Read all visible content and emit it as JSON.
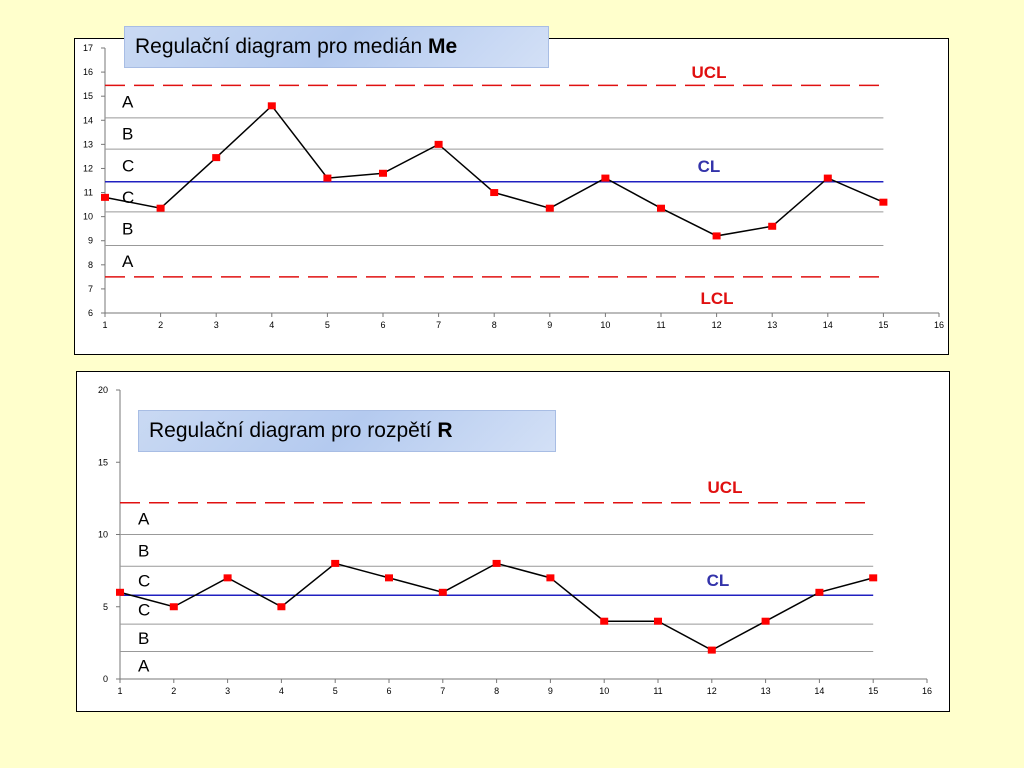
{
  "charts": {
    "me": {
      "title_text": "Regulační diagram pro medián ",
      "title_bold": "Me",
      "labels": {
        "ucl": "UCL",
        "cl": "CL",
        "lcl": "LCL"
      },
      "zones": [
        "A",
        "B",
        "C",
        "C",
        "B",
        "A"
      ],
      "x_ticks": [
        "1",
        "2",
        "3",
        "4",
        "5",
        "6",
        "7",
        "8",
        "9",
        "10",
        "11",
        "12",
        "13",
        "14",
        "15",
        "16"
      ],
      "y_ticks": [
        "6",
        "7",
        "8",
        "9",
        "10",
        "11",
        "12",
        "13",
        "14",
        "15",
        "16",
        "17"
      ]
    },
    "r": {
      "title_text": "Regulační diagram pro rozpětí  ",
      "title_bold": "R",
      "labels": {
        "ucl": "UCL",
        "cl": "CL"
      },
      "zones": [
        "A",
        "B",
        "C",
        "C",
        "B",
        "A"
      ],
      "x_ticks": [
        "1",
        "2",
        "3",
        "4",
        "5",
        "6",
        "7",
        "8",
        "9",
        "10",
        "11",
        "12",
        "13",
        "14",
        "15",
        "16"
      ],
      "y_ticks": [
        "0",
        "5",
        "10",
        "15",
        "20"
      ]
    }
  },
  "colors": {
    "series": "#000000",
    "marker": "#ff0000",
    "limit": "#e01010",
    "center": "#2020c0",
    "zone_line": "#999999"
  },
  "chart_data": [
    {
      "type": "line",
      "title": "Regulační diagram pro medián Me",
      "x": [
        1,
        2,
        3,
        4,
        5,
        6,
        7,
        8,
        9,
        10,
        11,
        12,
        13,
        14,
        15
      ],
      "series": [
        {
          "values": [
            10.8,
            10.35,
            12.45,
            14.6,
            11.6,
            11.8,
            13.0,
            11.0,
            10.35,
            11.6,
            10.35,
            9.2,
            9.6,
            11.6,
            10.6
          ]
        }
      ],
      "ucl": 15.45,
      "cl": 11.45,
      "lcl": 7.5,
      "zone_boundaries": [
        14.1,
        12.8,
        10.2,
        8.8
      ],
      "xlim": [
        1,
        16
      ],
      "ylim": [
        6,
        17
      ],
      "grid": false,
      "legend": "none"
    },
    {
      "type": "line",
      "title": "Regulační diagram pro rozpětí R",
      "x": [
        1,
        2,
        3,
        4,
        5,
        6,
        7,
        8,
        9,
        10,
        11,
        12,
        13,
        14,
        15
      ],
      "series": [
        {
          "values": [
            6,
            5,
            7,
            5,
            8,
            7,
            6,
            8,
            7,
            4,
            4,
            2,
            4,
            6,
            7
          ]
        }
      ],
      "ucl": 12.2,
      "cl": 5.8,
      "lcl": 0,
      "zone_boundaries": [
        10.0,
        7.8,
        3.8,
        1.9
      ],
      "xlim": [
        1,
        16
      ],
      "ylim": [
        0,
        20
      ],
      "grid": false,
      "legend": "none"
    }
  ]
}
